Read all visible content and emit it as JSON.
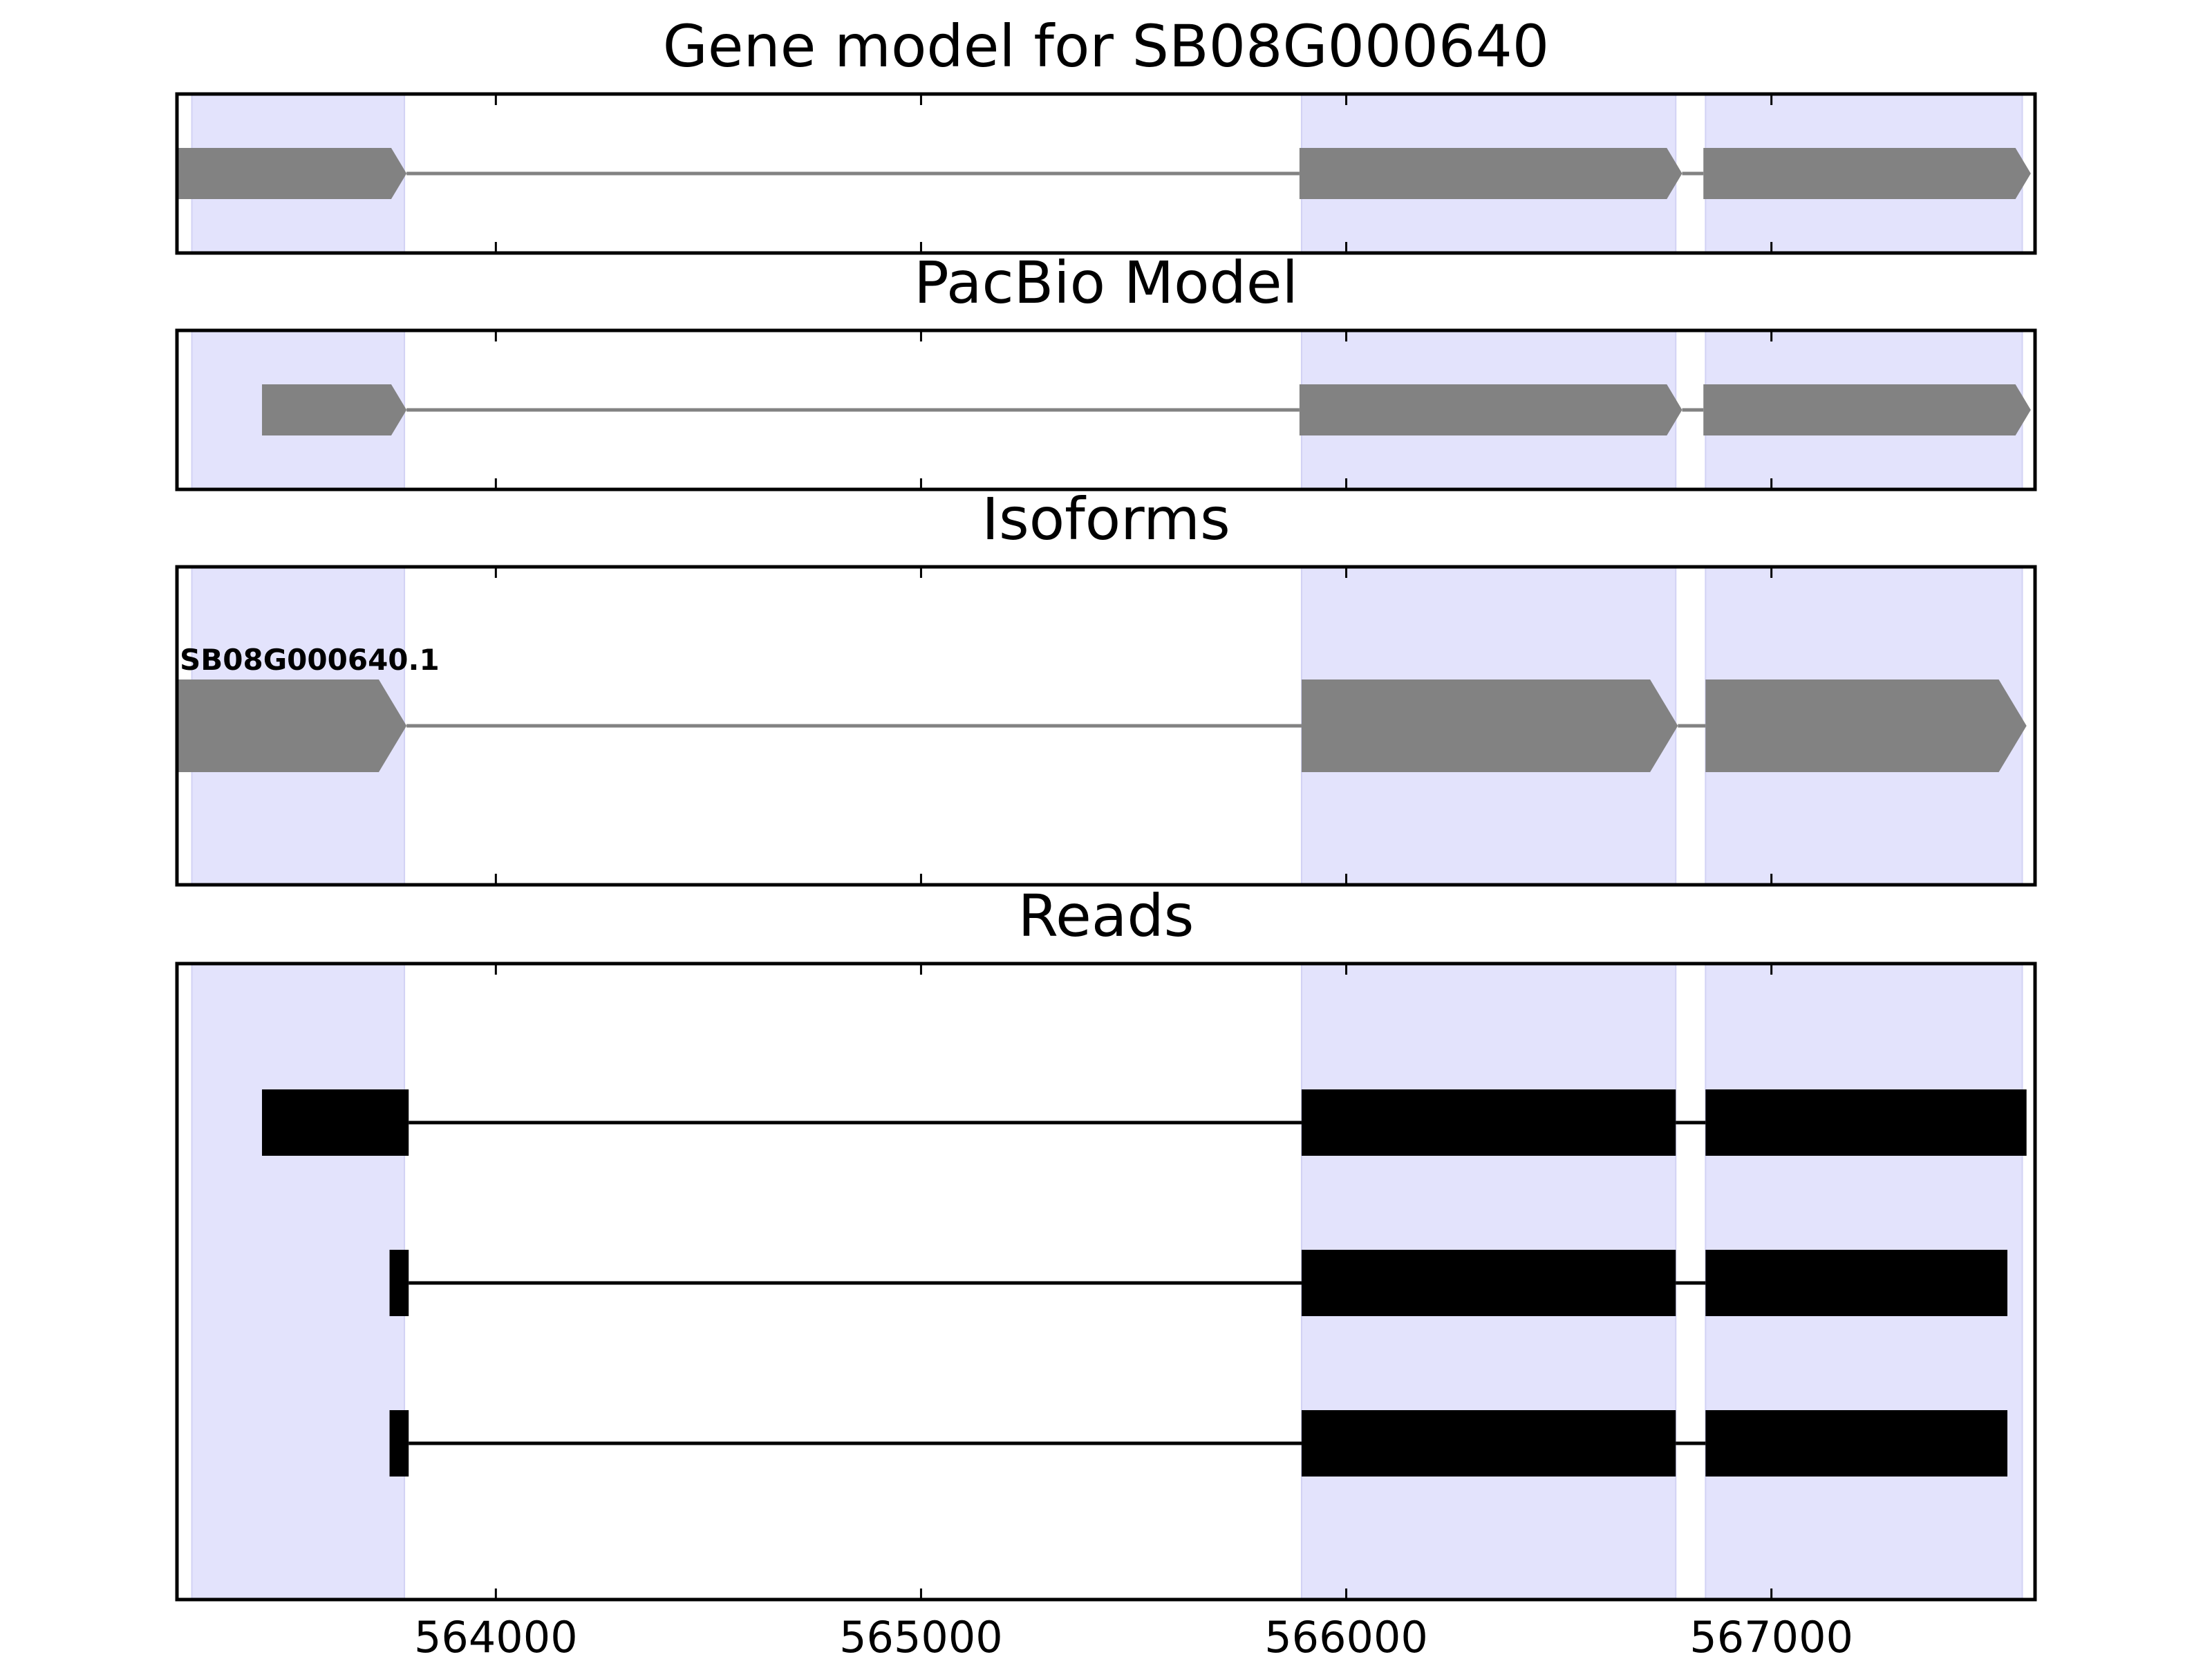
{
  "chart_data": {
    "type": "gene-model",
    "xlim": [
      563250,
      567620
    ],
    "x_ticks": [
      564000,
      565000,
      566000,
      567000
    ],
    "x_tick_labels": [
      "564000",
      "565000",
      "566000",
      "567000"
    ],
    "highlight_color": "#e3e3fc",
    "feature_color": "#828282",
    "read_color": "#000000",
    "highlight_regions": [
      [
        563285,
        563785
      ],
      [
        565895,
        566775
      ],
      [
        566845,
        567590
      ]
    ],
    "panels": [
      {
        "title": "Gene model for SB08G000640",
        "style": "arrow",
        "tracks": [
          {
            "label": "",
            "exons": [
              [
                563250,
                563790
              ],
              [
                565890,
                566790
              ],
              [
                566840,
                567610
              ]
            ]
          }
        ]
      },
      {
        "title": "PacBio Model",
        "style": "arrow",
        "tracks": [
          {
            "label": "",
            "exons": [
              [
                563450,
                563790
              ],
              [
                565890,
                566790
              ],
              [
                566840,
                567610
              ]
            ]
          }
        ]
      },
      {
        "title": "Isoforms",
        "style": "arrow",
        "tracks": [
          {
            "label": "SB08G000640.1",
            "exons": [
              [
                563250,
                563790
              ],
              [
                565895,
                566780
              ],
              [
                566845,
                567600
              ]
            ]
          }
        ]
      },
      {
        "title": "Reads",
        "style": "block",
        "tracks": [
          {
            "label": "",
            "exons": [
              [
                563450,
                563795
              ],
              [
                565895,
                566775
              ],
              [
                566845,
                567600
              ]
            ]
          },
          {
            "label": "",
            "exons": [
              [
                563750,
                563795
              ],
              [
                565895,
                566775
              ],
              [
                566845,
                567555
              ]
            ]
          },
          {
            "label": "",
            "exons": [
              [
                563750,
                563795
              ],
              [
                565895,
                566775
              ],
              [
                566845,
                567555
              ]
            ]
          }
        ]
      }
    ]
  }
}
